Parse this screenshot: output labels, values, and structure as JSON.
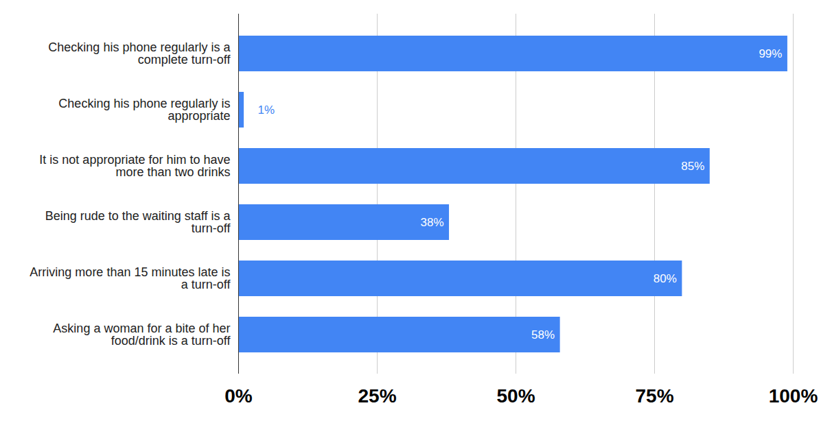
{
  "chart_data": {
    "type": "bar",
    "orientation": "horizontal",
    "categories": [
      "Checking his phone regularly is a complete turn-off",
      "Checking his phone regularly is appropriate",
      "It is not appropriate for him to have more than two drinks",
      "Being rude to the waiting staff is a turn-off",
      "Arriving more than 15 minutes late is a turn-off",
      "Asking a woman for a bite of her food/drink is a turn-off"
    ],
    "values": [
      99,
      1,
      85,
      38,
      80,
      58
    ],
    "value_labels": [
      "99%",
      "1%",
      "85%",
      "38%",
      "80%",
      "58%"
    ],
    "data_labels": true,
    "color": "#4285f4",
    "xlim": [
      0,
      100
    ],
    "xticks": [
      {
        "value": 0,
        "label": "0%"
      },
      {
        "value": 25,
        "label": "25%"
      },
      {
        "value": 50,
        "label": "50%"
      },
      {
        "value": 75,
        "label": "75%"
      },
      {
        "value": 100,
        "label": "100%"
      }
    ],
    "grid": true
  }
}
